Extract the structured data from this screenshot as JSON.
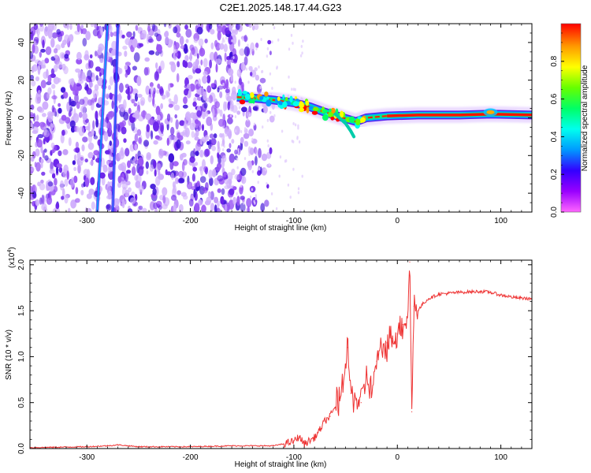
{
  "title": "C2E1.2025.148.17.44.G23",
  "chart_data": [
    {
      "type": "heatmap",
      "xlabel": "Height of straight line (km)",
      "ylabel": "Frequency (Hz)",
      "xlim": [
        -355,
        130
      ],
      "ylim": [
        -50,
        50
      ],
      "xticks": [
        -300,
        -200,
        -100,
        0,
        100
      ],
      "yticks": [
        -40,
        -20,
        0,
        20,
        40
      ],
      "colorbar": {
        "label": "Normalized spectral amplitude",
        "range": [
          0.0,
          1.0
        ],
        "ticks": [
          "0.0",
          "0.2",
          "0.4",
          "0.6",
          "0.8"
        ],
        "tick_values": [
          0.0,
          0.2,
          0.4,
          0.6,
          0.8
        ],
        "colors": [
          "#ff66ff",
          "#9900ff",
          "#3300ff",
          "#0099ff",
          "#00ffee",
          "#00ff66",
          "#66ff00",
          "#ffff00",
          "#ff9900",
          "#ff0000"
        ]
      },
      "ridge": [
        {
          "x": -155,
          "y": 11
        },
        {
          "x": -140,
          "y": 10.5
        },
        {
          "x": -120,
          "y": 9.5
        },
        {
          "x": -100,
          "y": 8
        },
        {
          "x": -85,
          "y": 6
        },
        {
          "x": -70,
          "y": 3
        },
        {
          "x": -55,
          "y": 0.5
        },
        {
          "x": -40,
          "y": -2
        },
        {
          "x": -30,
          "y": 0
        },
        {
          "x": -10,
          "y": 1
        },
        {
          "x": 20,
          "y": 1.5
        },
        {
          "x": 60,
          "y": 1.5
        },
        {
          "x": 90,
          "y": 2
        },
        {
          "x": 130,
          "y": 1.5
        }
      ],
      "streaks": [
        {
          "x_bottom": -290,
          "x_top": -280
        },
        {
          "x_bottom": -275,
          "x_top": -270
        }
      ]
    },
    {
      "type": "line",
      "xlabel": "Height of straight line (km)",
      "ylabel": "SNR (10 * v/v)",
      "y_scale_label": "(x10",
      "y_scale_exp": "4",
      "xlim": [
        -355,
        130
      ],
      "ylim": [
        0,
        2.05
      ],
      "xticks": [
        -300,
        -200,
        -100,
        0,
        100
      ],
      "yticks": [
        "0.0",
        "0.5",
        "1.0",
        "1.5",
        "2.0"
      ],
      "ytick_values": [
        0.0,
        0.5,
        1.0,
        1.5,
        2.0
      ],
      "color": "#ee3333",
      "series": [
        {
          "name": "SNR",
          "points": [
            [
              -355,
              0.01
            ],
            [
              -300,
              0.02
            ],
            [
              -280,
              0.03
            ],
            [
              -270,
              0.04
            ],
            [
              -250,
              0.02
            ],
            [
              -200,
              0.02
            ],
            [
              -160,
              0.03
            ],
            [
              -120,
              0.03
            ],
            [
              -110,
              0.05
            ],
            [
              -100,
              0.08
            ],
            [
              -95,
              0.13
            ],
            [
              -90,
              0.05
            ],
            [
              -80,
              0.12
            ],
            [
              -75,
              0.2
            ],
            [
              -70,
              0.3
            ],
            [
              -65,
              0.35
            ],
            [
              -60,
              0.45
            ],
            [
              -55,
              0.55
            ],
            [
              -50,
              0.9
            ],
            [
              -48,
              1.1
            ],
            [
              -45,
              0.6
            ],
            [
              -40,
              0.55
            ],
            [
              -35,
              0.5
            ],
            [
              -30,
              0.8
            ],
            [
              -25,
              0.6
            ],
            [
              -20,
              0.95
            ],
            [
              -15,
              1.05
            ],
            [
              -10,
              1.15
            ],
            [
              -5,
              1.2
            ],
            [
              0,
              1.25
            ],
            [
              5,
              1.35
            ],
            [
              10,
              1.45
            ],
            [
              12,
              2.03
            ],
            [
              14,
              0.4
            ],
            [
              16,
              1.55
            ],
            [
              20,
              1.5
            ],
            [
              25,
              1.58
            ],
            [
              30,
              1.63
            ],
            [
              40,
              1.68
            ],
            [
              60,
              1.7
            ],
            [
              80,
              1.71
            ],
            [
              90,
              1.7
            ],
            [
              100,
              1.67
            ],
            [
              115,
              1.64
            ],
            [
              130,
              1.63
            ]
          ]
        }
      ]
    }
  ]
}
